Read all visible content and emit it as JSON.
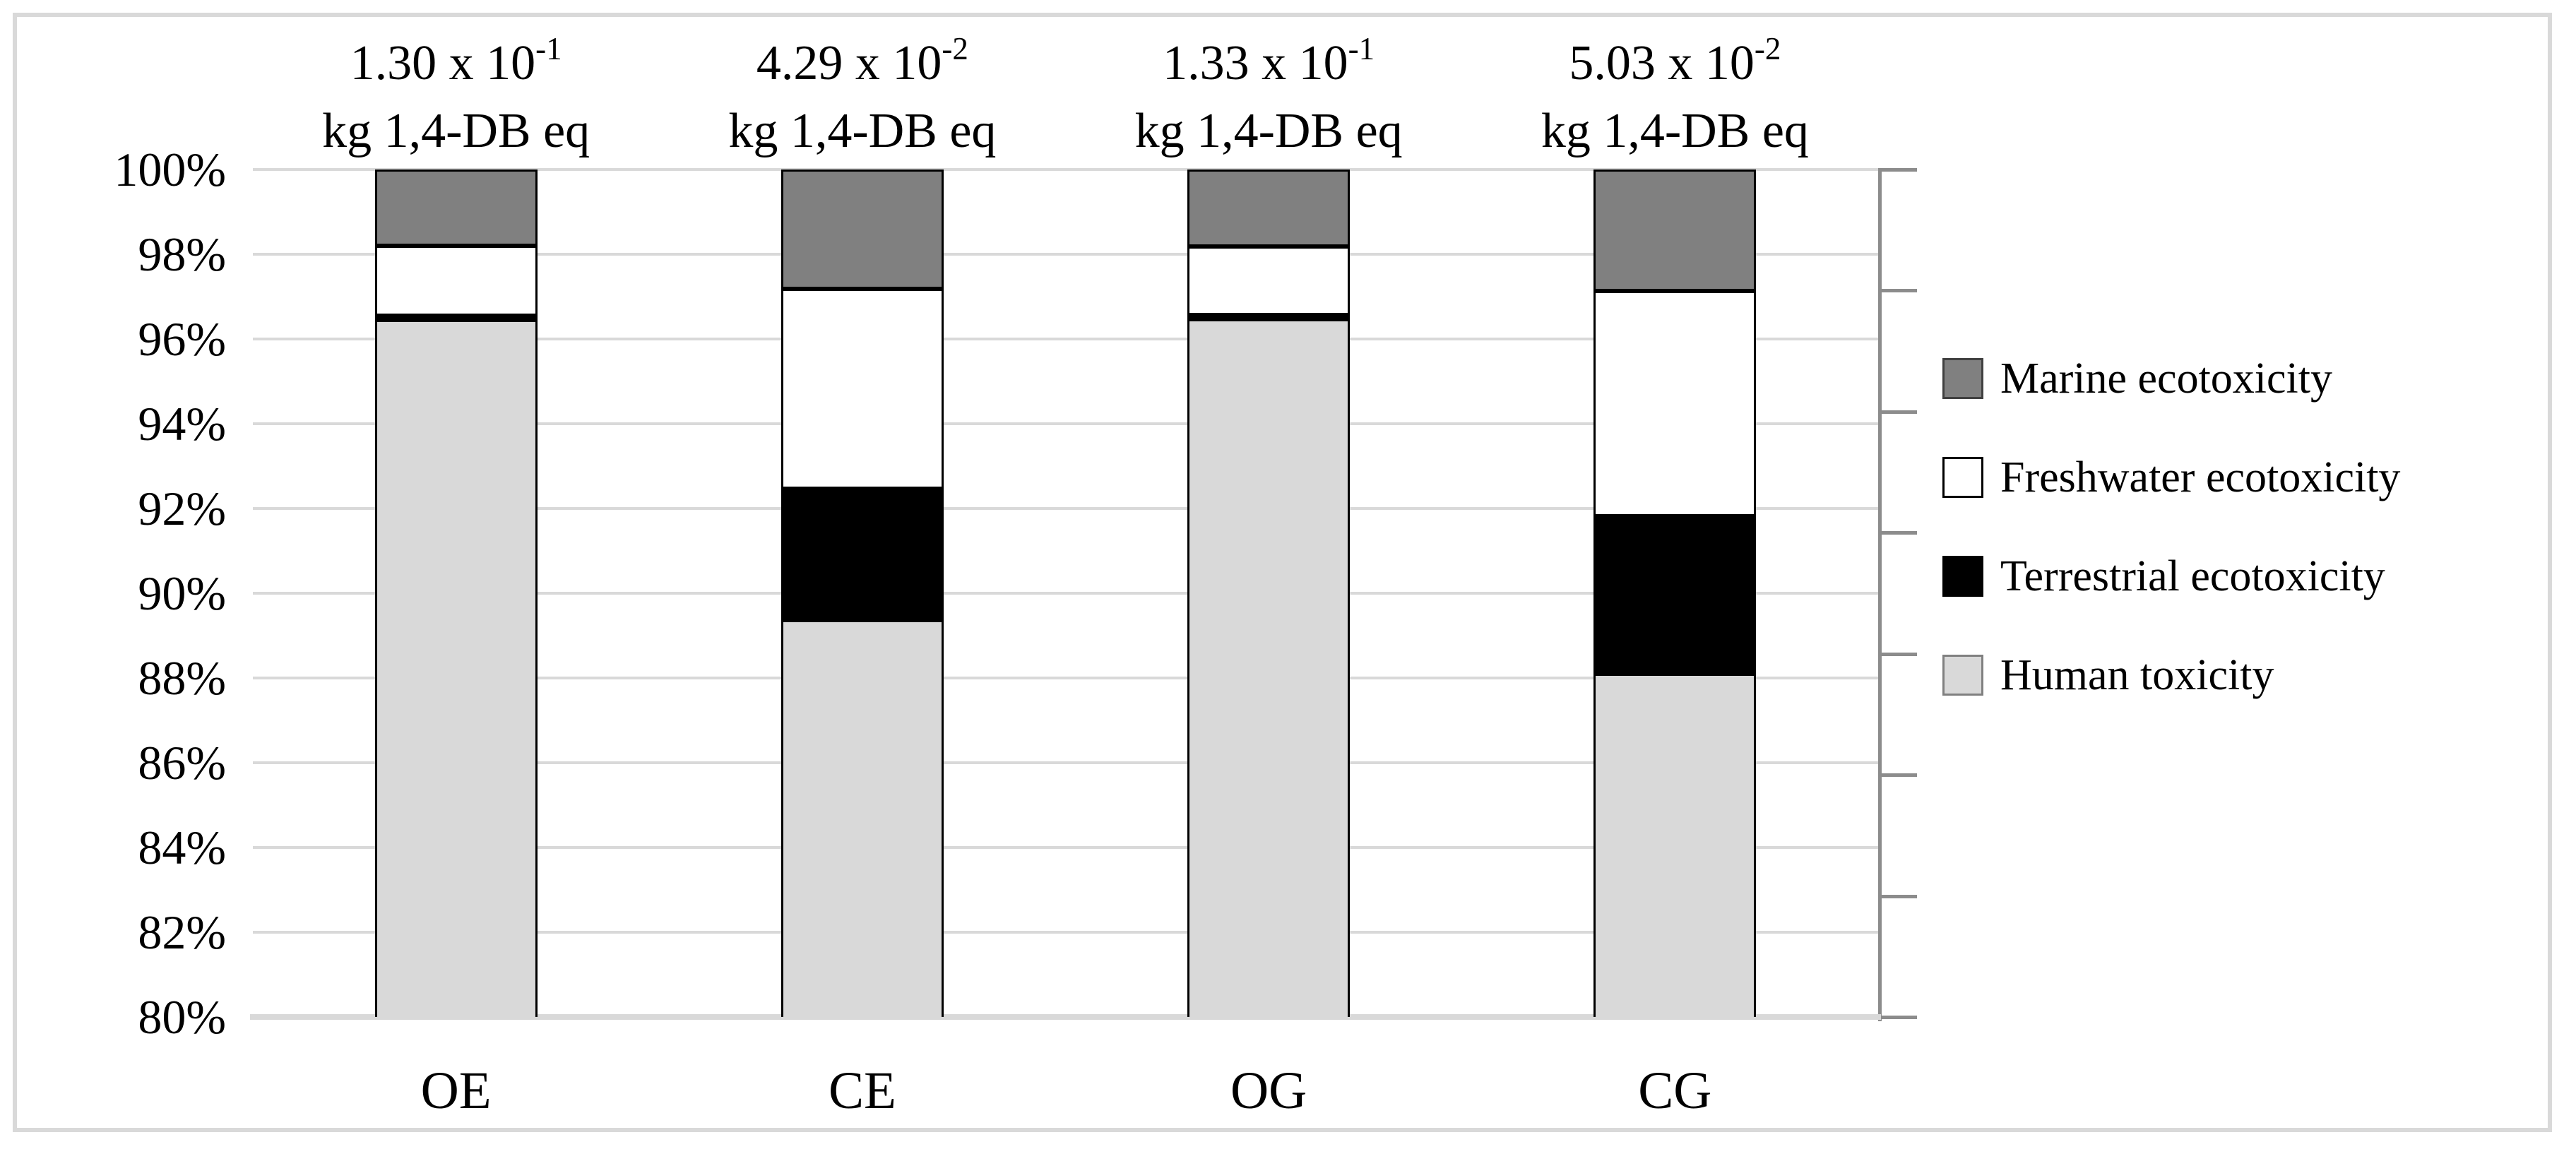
{
  "figure": {
    "background": "#ffffff",
    "frame_color": "#d9d9d9",
    "text_color": "#000000"
  },
  "chart_data": {
    "type": "bar",
    "stacked": true,
    "title": "",
    "xlabel": "",
    "ylabel": "",
    "categories": [
      "OE",
      "CE",
      "OG",
      "CG"
    ],
    "annotations": [
      {
        "mantissa": "1.30",
        "times": " x 10",
        "exponent": "-1",
        "unit": "kg 1,4-DB eq"
      },
      {
        "mantissa": "4.29",
        "times": " x 10",
        "exponent": "-2",
        "unit": "kg 1,4-DB eq"
      },
      {
        "mantissa": "1.33",
        "times": " x 10",
        "exponent": "-1",
        "unit": "kg 1,4-DB eq"
      },
      {
        "mantissa": "5.03",
        "times": " x 10",
        "exponent": "-2",
        "unit": "kg 1,4-DB eq"
      }
    ],
    "series": [
      {
        "name": "Human toxicity",
        "color": "#d9d9d9",
        "values": [
          96.45,
          89.36,
          96.46,
          88.1
        ]
      },
      {
        "name": "Terrestrial ecotoxicity",
        "color": "#000000",
        "values": [
          0.1,
          3.11,
          0.1,
          3.72
        ]
      },
      {
        "name": "Freshwater ecotoxicity",
        "color": "#ffffff",
        "values": [
          1.65,
          4.71,
          1.62,
          5.32
        ]
      },
      {
        "name": "Marine ecotoxicity",
        "color": "#808080",
        "values": [
          1.8,
          2.82,
          1.82,
          2.86
        ]
      }
    ],
    "legend": [
      {
        "label": "Marine ecotoxicity",
        "color": "#808080",
        "border": "#404040"
      },
      {
        "label": "Freshwater ecotoxicity",
        "color": "#ffffff",
        "border": "#000000"
      },
      {
        "label": "Terrestrial ecotoxicity",
        "color": "#000000",
        "border": "#000000"
      },
      {
        "label": "Human toxicity",
        "color": "#d9d9d9",
        "border": "#808080"
      }
    ],
    "legend_position": "right",
    "grid": true,
    "gridline_color": "#d9d9d9",
    "bottom_axis_color": "#d9d9d9",
    "right_axis_color": "#8c8c8c",
    "bar_border_color": "#000000",
    "y_axis": {
      "min": 80,
      "max": 100,
      "tick_step": 2,
      "tick_labels": [
        "100%",
        "98%",
        "96%",
        "94%",
        "92%",
        "90%",
        "88%",
        "86%",
        "84%",
        "82%",
        "80%"
      ]
    },
    "right_axis": {
      "tick_count": 8
    }
  }
}
